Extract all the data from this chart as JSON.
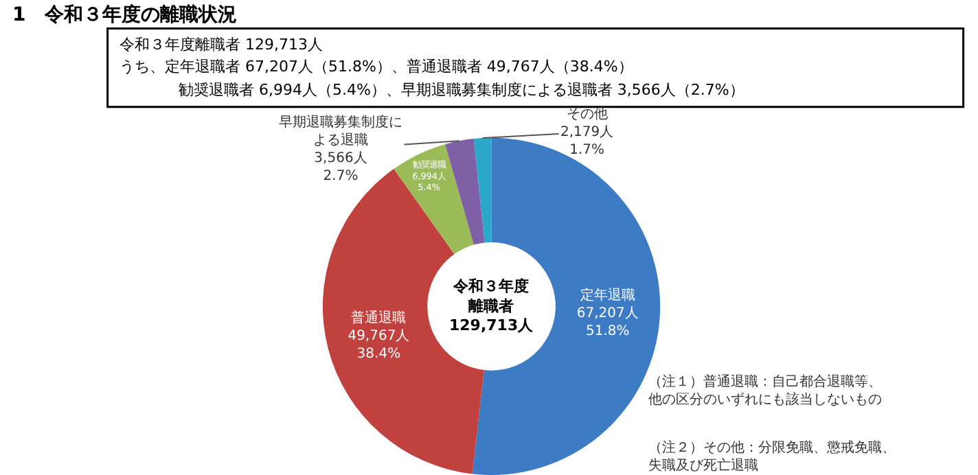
{
  "chart_data": {
    "type": "donut",
    "title": "1　令和３年度の離職状況",
    "subtitle": "令和３年度離職者 129,713人",
    "categories": [
      "定年退職",
      "普通退職",
      "勧奨退職",
      "早期退職募集制度による退職",
      "その他"
    ],
    "values": [
      67207,
      49767,
      6994,
      3566,
      2179
    ],
    "value_labels": [
      "67,207人\n51.8%",
      "49,767人\n38.4%",
      "6,994人\n5.4%",
      "3,566人\n2.7%",
      "2,179人\n1.7%"
    ],
    "colors": [
      "#3d7cc4",
      "#c0413e",
      "#9bbb59",
      "#7f5fa6",
      "#2aa7c9"
    ],
    "annotations": [
      "令和３年度離職者 129,713人",
      "うち、定年退職者 67,207人（51.8%）、普通退職者 49,767人（38.4%）勧奨退職者 6,994人（5.4%）、早期退職募集制度による退職者 3,566人（2.7%）",
      "（注１）普通退職：自己都合退職等、他の区分のいずれにも該当しないもの",
      "（注２）その他：分限免職、懲戒免職、失職及び死亡退職"
    ],
    "legend": false
  }
}
